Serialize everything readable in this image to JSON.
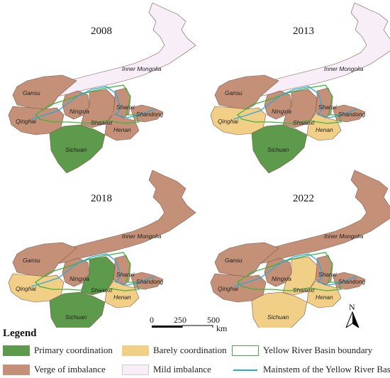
{
  "panels": [
    {
      "year": "2008",
      "colors": {
        "inner_mongolia": "mild",
        "gansu": "verge",
        "qinghai": "verge",
        "ningxia": "verge",
        "shaanxi": "verge",
        "shanxi": "verge",
        "henan": "verge",
        "shandong": "verge",
        "sichuan": "primary"
      },
      "labels": {
        "inner_mongolia": "Inner Mongolia",
        "gansu": "Gansu",
        "qinghai": "Qinghai",
        "ningxia": "Ningxia",
        "shaanxi": "Shaanxi",
        "shanxi": "Shanxi",
        "henan": "Henan",
        "shandong": "Shandong",
        "sichuan": "Sichuan"
      }
    },
    {
      "year": "2013",
      "colors": {
        "inner_mongolia": "mild",
        "gansu": "verge",
        "qinghai": "barely",
        "ningxia": "verge",
        "shaanxi": "verge",
        "shanxi": "verge",
        "henan": "barely",
        "shandong": "verge",
        "sichuan": "primary"
      },
      "labels": {
        "inner_mongolia": "Inner Mongolia",
        "gansu": "Gansu",
        "qinghai": "Qinghai",
        "ningxia": "Ningxia",
        "shaanxi": "Shaanxi",
        "shanxi": "Shanxi",
        "henan": "Henan",
        "shandong": "Shandong",
        "sichuan": "Sichuan"
      }
    },
    {
      "year": "2018",
      "colors": {
        "inner_mongolia": "verge",
        "gansu": "verge",
        "qinghai": "barely",
        "ningxia": "verge",
        "shaanxi": "primary",
        "shanxi": "verge",
        "henan": "barely",
        "shandong": "verge",
        "sichuan": "primary"
      },
      "labels": {
        "inner_mongolia": "Inner Mongolia",
        "gansu": "Gansu",
        "qinghai": "Qinghai",
        "ningxia": "Ningxia",
        "shaanxi": "Shaanxi",
        "shanxi": "Shanxi",
        "henan": "Henan",
        "shandong": "Shandong",
        "sichuan": "Sichuan"
      }
    },
    {
      "year": "2022",
      "colors": {
        "inner_mongolia": "verge",
        "gansu": "verge",
        "qinghai": "verge",
        "ningxia": "verge",
        "shaanxi": "barely",
        "shanxi": "verge",
        "henan": "barely",
        "shandong": "verge",
        "sichuan": "barely"
      },
      "labels": {
        "inner_mongolia": "Inner Mongolia",
        "gansu": "Gansu",
        "qinghai": "Qinghai",
        "ningxia": "Ningxia",
        "shaanxi": "Shaanxi",
        "shanxi": "Shanxi",
        "henan": "Henan",
        "shandong": "Shandong",
        "sichuan": "Sichuan"
      }
    }
  ],
  "palette": {
    "primary": "#5e9a4c",
    "barely": "#f2cf87",
    "verge": "#c49077",
    "mild": "#f8eef8",
    "basin_boundary": "#3fb23b",
    "mainstem": "#2aa7e0"
  },
  "scale_bar": {
    "ticks": [
      "0",
      "250",
      "500"
    ],
    "unit": "km"
  },
  "north_arrow": {
    "label": "N"
  },
  "legend": {
    "title": "Legend",
    "items": {
      "primary": "Primary coordination",
      "barely": "Barely coordination",
      "boundary": "Yellow River Basin boundary",
      "verge": "Verge of imbalance",
      "mild": "Mild imbalance",
      "mainstem": "Mainstem of the Yellow River Basin"
    }
  }
}
